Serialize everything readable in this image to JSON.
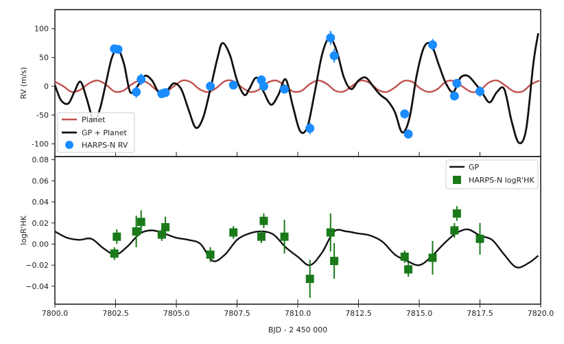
{
  "chart_data": [
    {
      "type": "line",
      "ylabel": "RV (m/s)",
      "xlim": [
        7800.0,
        7820.0
      ],
      "ylim": [
        -122,
        133
      ],
      "yticks": [
        100,
        50,
        0,
        -50,
        -100
      ],
      "grid": false,
      "legend_position": "bottom-left",
      "legend": [
        "Planet",
        "GP + Planet",
        "HARPS-N RV"
      ],
      "colors": {
        "planet": "#c0504d",
        "gp": "#111111",
        "points": "#1a8cff"
      },
      "series": [
        {
          "name": "Planet",
          "x": [
            7800.0,
            7800.35,
            7800.7,
            7801.05,
            7801.4,
            7801.75,
            7802.1,
            7802.45,
            7802.8,
            7803.15,
            7803.5,
            7803.85,
            7804.2,
            7804.55,
            7804.9,
            7805.25,
            7805.6,
            7805.95,
            7806.3,
            7806.65,
            7807.0,
            7807.35,
            7807.7,
            7808.05,
            7808.4,
            7808.75,
            7809.1,
            7809.45,
            7809.8,
            7810.15,
            7810.5,
            7810.85,
            7811.2,
            7811.55,
            7811.9,
            7812.25,
            7812.6,
            7812.95,
            7813.3,
            7813.65,
            7814.0,
            7814.35,
            7814.7,
            7815.05,
            7815.4,
            7815.75,
            7816.1,
            7816.45,
            7816.8,
            7817.15,
            7817.5,
            7817.85,
            7818.2,
            7818.55,
            7818.9,
            7819.25,
            7819.6,
            7819.95
          ],
          "y": [
            8,
            0,
            -10,
            -6,
            5,
            10,
            3,
            -9,
            -8,
            3,
            10,
            5,
            -7,
            -10,
            0,
            10,
            7,
            -5,
            -10,
            -3,
            9,
            9,
            -2,
            -10,
            -6,
            6,
            10,
            2,
            -9,
            -8,
            4,
            10,
            4,
            -8,
            -9,
            1,
            10,
            6,
            -6,
            -10,
            -2,
            9,
            8,
            -4,
            -10,
            -5,
            8,
            9,
            -1,
            -10,
            -7,
            6,
            10,
            1,
            -9,
            -9,
            3,
            10
          ]
        },
        {
          "name": "GP + Planet",
          "x": [
            7800.0,
            7800.25,
            7800.55,
            7800.8,
            7801.05,
            7801.3,
            7801.6,
            7801.85,
            7802.1,
            7802.35,
            7802.6,
            7802.85,
            7803.1,
            7803.4,
            7803.7,
            7804.0,
            7804.3,
            7804.6,
            7804.9,
            7805.2,
            7805.5,
            7805.8,
            7806.1,
            7806.4,
            7806.7,
            7806.9,
            7807.2,
            7807.5,
            7807.8,
            7808.0,
            7808.3,
            7808.6,
            7808.9,
            7809.2,
            7809.5,
            7809.8,
            7810.1,
            7810.4,
            7810.7,
            7811.0,
            7811.3,
            7811.6,
            7811.9,
            7812.2,
            7812.5,
            7812.8,
            7813.1,
            7813.4,
            7813.7,
            7814.0,
            7814.3,
            7814.6,
            7814.9,
            7815.2,
            7815.5,
            7815.8,
            7816.1,
            7816.4,
            7816.7,
            7817.0,
            7817.3,
            7817.6,
            7817.9,
            7818.2,
            7818.5,
            7818.8,
            7819.1,
            7819.4,
            7819.7,
            7819.9
          ],
          "y": [
            2,
            -24,
            -30,
            -10,
            8,
            -20,
            -60,
            -40,
            5,
            50,
            64,
            38,
            -10,
            0,
            18,
            10,
            -12,
            -8,
            5,
            -5,
            -40,
            -72,
            -55,
            -5,
            50,
            75,
            55,
            10,
            -15,
            -5,
            15,
            -10,
            -32,
            -15,
            12,
            -35,
            -78,
            -70,
            -10,
            55,
            84,
            62,
            15,
            -5,
            10,
            15,
            0,
            -15,
            -25,
            -45,
            -80,
            -55,
            20,
            68,
            72,
            38,
            5,
            -10,
            15,
            18,
            5,
            -12,
            -28,
            -10,
            -5,
            -60,
            -98,
            -75,
            40,
            92
          ]
        },
        {
          "name": "HARPS-N RV",
          "x": [
            7802.45,
            7802.6,
            7803.35,
            7803.55,
            7804.4,
            7804.55,
            7806.4,
            7807.35,
            7808.5,
            7808.6,
            7809.45,
            7810.5,
            7811.35,
            7811.5,
            7814.4,
            7814.55,
            7815.55,
            7816.45,
            7816.55,
            7817.5
          ],
          "y": [
            65,
            64,
            -10,
            12,
            -13,
            -11,
            0,
            2,
            11,
            0,
            -5,
            -73,
            84,
            53,
            -48,
            -83,
            72,
            -17,
            5,
            -9
          ],
          "yerr": [
            6,
            6,
            10,
            10,
            6,
            6,
            5,
            5,
            6,
            6,
            8,
            10,
            12,
            12,
            8,
            8,
            10,
            5,
            5,
            9
          ]
        }
      ]
    },
    {
      "type": "line",
      "xlabel": "BJD - 2 450 000",
      "ylabel": "logR'HK",
      "xlim": [
        7800.0,
        7820.0
      ],
      "ylim": [
        -0.057,
        0.083
      ],
      "xticks": [
        "7800.0",
        "7802.5",
        "7805.0",
        "7807.5",
        "7810.0",
        "7812.5",
        "7815.0",
        "7817.5",
        "7820.0"
      ],
      "yticks": [
        "0.08",
        "0.06",
        "0.04",
        "0.02",
        "0.00",
        "−0.02",
        "−0.04"
      ],
      "grid": false,
      "legend_position": "top-right",
      "legend": [
        "GP",
        "HARPS-N logR'HK"
      ],
      "colors": {
        "gp": "#111111",
        "points": "#1a7a1a"
      },
      "series": [
        {
          "name": "GP",
          "x": [
            7800.0,
            7800.5,
            7801.0,
            7801.5,
            7802.0,
            7802.5,
            7803.0,
            7803.5,
            7804.0,
            7804.5,
            7805.0,
            7805.5,
            7806.0,
            7806.5,
            7807.0,
            7807.5,
            7808.0,
            7808.5,
            7809.0,
            7809.5,
            7810.0,
            7810.5,
            7811.0,
            7811.5,
            7812.0,
            7812.5,
            7813.0,
            7813.5,
            7814.0,
            7814.5,
            7815.0,
            7815.5,
            7816.0,
            7816.5,
            7817.0,
            7817.5,
            7818.0,
            7818.5,
            7819.0,
            7819.5,
            7819.9
          ],
          "y": [
            0.012,
            0.006,
            0.004,
            0.005,
            -0.004,
            -0.01,
            -0.002,
            0.01,
            0.013,
            0.01,
            0.006,
            0.004,
            0.0,
            -0.016,
            -0.01,
            0.004,
            0.01,
            0.012,
            0.009,
            -0.003,
            -0.012,
            -0.02,
            -0.008,
            0.012,
            0.012,
            0.01,
            0.008,
            0.002,
            -0.01,
            -0.016,
            -0.02,
            -0.012,
            0.0,
            0.01,
            0.014,
            0.008,
            0.004,
            -0.01,
            -0.022,
            -0.018,
            -0.011
          ]
        },
        {
          "name": "HARPS-N logR'HK",
          "x": [
            7802.45,
            7802.55,
            7803.35,
            7803.55,
            7804.4,
            7804.55,
            7806.4,
            7807.35,
            7808.5,
            7808.6,
            7809.45,
            7810.5,
            7811.35,
            7811.5,
            7814.4,
            7814.55,
            7815.55,
            7816.45,
            7816.55,
            7817.5
          ],
          "y": [
            -0.009,
            0.007,
            0.012,
            0.021,
            0.009,
            0.016,
            -0.01,
            0.011,
            0.007,
            0.022,
            0.007,
            -0.033,
            0.011,
            -0.016,
            -0.012,
            -0.024,
            -0.013,
            0.013,
            0.029,
            0.005
          ],
          "yerr": [
            0.006,
            0.007,
            0.015,
            0.011,
            0.006,
            0.01,
            0.007,
            0.006,
            0.006,
            0.007,
            0.016,
            0.018,
            0.018,
            0.017,
            0.006,
            0.007,
            0.016,
            0.007,
            0.007,
            0.015
          ]
        }
      ]
    }
  ]
}
